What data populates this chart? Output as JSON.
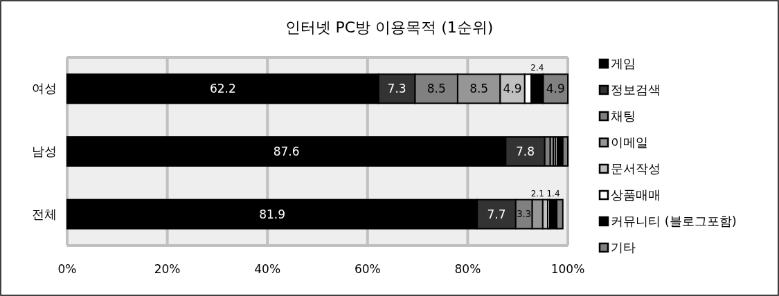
{
  "chart_data": {
    "type": "bar",
    "orientation": "horizontal",
    "stacked": true,
    "title": "인터넷 PC방 이용목적 (1순위)",
    "categories": [
      "여성",
      "남성",
      "전체"
    ],
    "xlim": [
      0,
      100
    ],
    "xticks": [
      {
        "value": 0,
        "label": "0%"
      },
      {
        "value": 20,
        "label": "20%"
      },
      {
        "value": 40,
        "label": "40%"
      },
      {
        "value": 60,
        "label": "60%"
      },
      {
        "value": 80,
        "label": "80%"
      },
      {
        "value": 100,
        "label": "100%"
      }
    ],
    "grid": "x",
    "legend": "right",
    "series": [
      {
        "name": "게임",
        "color": "#000000",
        "values": [
          62.2,
          87.6,
          81.9
        ],
        "value_labels": [
          "62.2",
          "87.6",
          "81.9"
        ]
      },
      {
        "name": "정보검색",
        "color": "#333333",
        "values": [
          7.3,
          7.8,
          7.7
        ],
        "value_labels": [
          "7.3",
          "7.8",
          "7.7"
        ]
      },
      {
        "name": "채팅",
        "color": "#808080",
        "values": [
          8.5,
          1.1,
          3.3
        ],
        "value_labels": [
          "8.5",
          null,
          "3.3"
        ]
      },
      {
        "name": "이메일",
        "color": "#969696",
        "values": [
          8.5,
          0.6,
          2.1
        ],
        "value_labels": [
          "8.5",
          null,
          "2.1"
        ]
      },
      {
        "name": "문서작성",
        "color": "#c0c0c0",
        "values": [
          4.9,
          0.4,
          1.0
        ],
        "value_labels": [
          "4.9",
          null,
          null
        ]
      },
      {
        "name": "상품매매",
        "color": "#ffffff",
        "values": [
          1.3,
          0.4,
          0.4
        ],
        "value_labels": [
          null,
          null,
          null
        ]
      },
      {
        "name": "커뮤니티 (블로그포함)",
        "color": "#000000",
        "values": [
          2.4,
          1.1,
          1.4
        ],
        "value_labels": [
          "2.4",
          null,
          "1.4"
        ]
      },
      {
        "name": "기타",
        "color": "#808080",
        "values": [
          4.9,
          1.0,
          1.2
        ],
        "value_labels": [
          "4.9",
          null,
          null
        ]
      }
    ]
  }
}
